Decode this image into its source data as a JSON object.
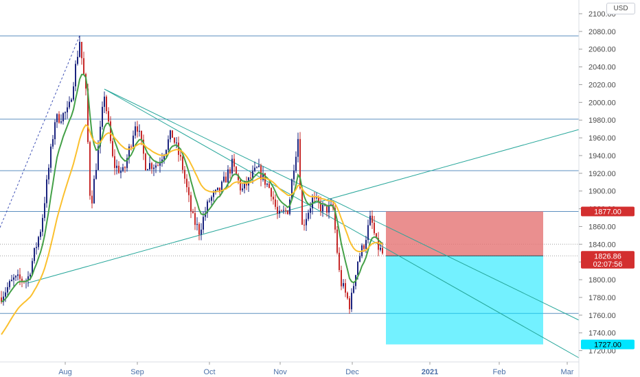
{
  "currency_button": "USD",
  "chart_data": {
    "type": "candlestick",
    "y_ticks": [
      "2100.00",
      "2080.00",
      "2060.00",
      "2040.00",
      "2020.00",
      "2000.00",
      "1980.00",
      "1960.00",
      "1940.00",
      "1920.00",
      "1900.00",
      "1880.00",
      "1860.00",
      "1840.00",
      "1820.00",
      "1800.00",
      "1780.00",
      "1760.00",
      "1740.00",
      "1720.00"
    ],
    "x_ticks": [
      {
        "label": "Aug",
        "bold": false
      },
      {
        "label": "Sep",
        "bold": false
      },
      {
        "label": "Oct",
        "bold": false
      },
      {
        "label": "Nov",
        "bold": false
      },
      {
        "label": "Dec",
        "bold": false
      },
      {
        "label": "2021",
        "bold": true
      },
      {
        "label": "Feb",
        "bold": false
      },
      {
        "label": "Mar",
        "bold": false
      }
    ],
    "ylim": [
      1710,
      2110
    ],
    "price_badges": [
      {
        "label": "1877.00",
        "value": 1877,
        "color": "#d32f2f"
      },
      {
        "label": "1826.86",
        "value": 1826.86,
        "color": "#d32f2f"
      },
      {
        "label": "02:07:56",
        "value": 1818,
        "color": "#d32f2f"
      },
      {
        "label": "1727.00",
        "value": 1727,
        "color": "#00e5ff"
      }
    ],
    "horizontal_levels": [
      2075,
      1981,
      1923,
      1877,
      1762
    ],
    "current_price": 1826.86,
    "dotted_level": 1840,
    "position": {
      "stop": 1877,
      "entry": 1826.86,
      "target": 1727,
      "color_stop": "#e57373",
      "color_target": "#00e5ff"
    },
    "colors": {
      "up": "#1a237e",
      "down": "#c62828",
      "ema_fast": "#43a047",
      "ema_slow": "#fbc02d",
      "trend": "#26a69a",
      "level": "#5b8fbf"
    }
  }
}
